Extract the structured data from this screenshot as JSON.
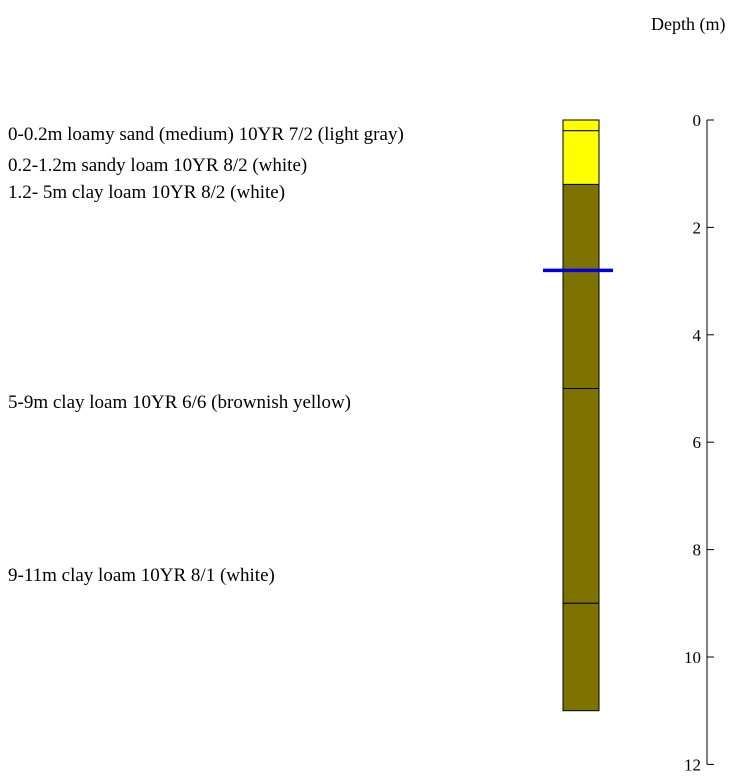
{
  "axis": {
    "title": "Depth (m)",
    "min": 0,
    "max": 12,
    "ticks": [
      0,
      2,
      4,
      6,
      8,
      10,
      12
    ]
  },
  "log": {
    "bottom_depth": 11,
    "water_table_depth": 2.8,
    "water_table_color": "#0000e6",
    "layers": [
      {
        "top": 0,
        "bottom": 0.2,
        "color": "#ffff00"
      },
      {
        "top": 0.2,
        "bottom": 1.2,
        "color": "#ffff00"
      },
      {
        "top": 1.2,
        "bottom": 5,
        "color": "#7f7300"
      },
      {
        "top": 5,
        "bottom": 9,
        "color": "#7f7300"
      },
      {
        "top": 9,
        "bottom": 11,
        "color": "#7f7300"
      }
    ]
  },
  "labels": [
    "0-0.2m loamy sand (medium) 10YR 7/2 (light gray)",
    "0.2-1.2m sandy loam 10YR 8/2 (white)",
    "1.2- 5m clay loam 10YR 8/2 (white)",
    "5-9m clay loam 10YR 6/6 (brownish yellow)",
    "9-11m clay loam 10YR 8/1 (white)"
  ]
}
